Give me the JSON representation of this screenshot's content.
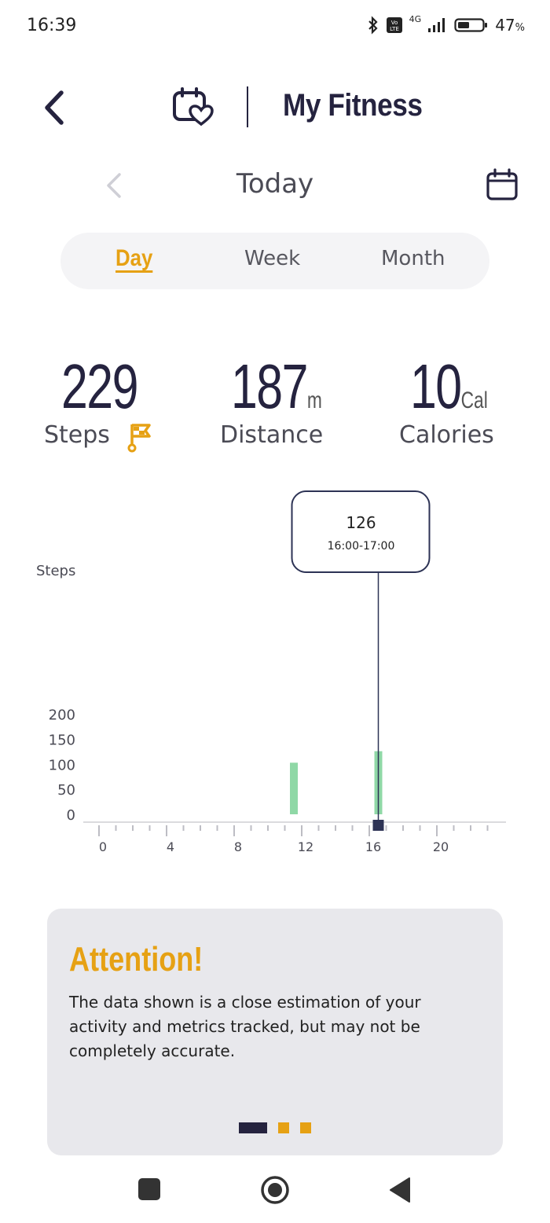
{
  "status_bar": {
    "time": "16:39",
    "battery": "47",
    "battery_pct": "%",
    "network": "4G"
  },
  "header": {
    "title": "My Fitness"
  },
  "date_nav": {
    "label": "Today"
  },
  "tabs": [
    {
      "label": "Day",
      "active": true
    },
    {
      "label": "Week",
      "active": false
    },
    {
      "label": "Month",
      "active": false
    }
  ],
  "metrics": {
    "steps": {
      "value": "229",
      "label": "Steps"
    },
    "distance": {
      "value": "187",
      "unit": "m",
      "label": "Distance"
    },
    "calories": {
      "value": "10",
      "unit": "Cal",
      "label": "Calories"
    }
  },
  "chart_data": {
    "type": "bar",
    "ylabel": "Steps",
    "ylim": [
      0,
      200
    ],
    "yticks": [
      0,
      50,
      100,
      150,
      200
    ],
    "xticks": [
      0,
      4,
      8,
      12,
      16,
      20
    ],
    "x_range": [
      0,
      23
    ],
    "bars": [
      {
        "hour": 11,
        "value": 103
      },
      {
        "hour": 16,
        "value": 126
      }
    ],
    "tooltip": {
      "value": "126",
      "range": "16:00-17:00",
      "hour": 16
    },
    "colors": {
      "bar": "#8fd8a6",
      "selected": "#2d3355",
      "axis": "#cfcfd4"
    }
  },
  "attention": {
    "title": "Attention!",
    "text": "The data shown is a close estimation of your activity and metrics tracked, but may not be completely accurate."
  },
  "colors": {
    "accent": "#e6a114",
    "primary": "#25233f"
  }
}
